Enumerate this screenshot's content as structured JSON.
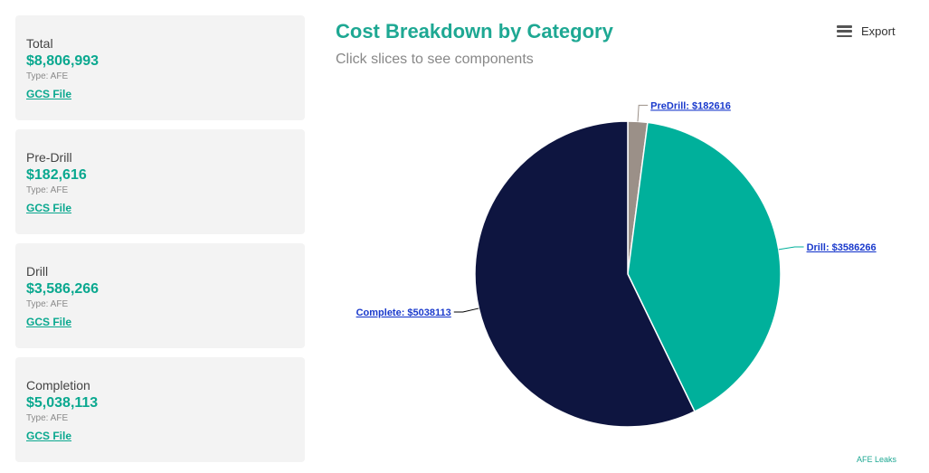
{
  "cards": [
    {
      "label": "Total",
      "value": "$8,806,993",
      "type": "Type: AFE",
      "link": "GCS File"
    },
    {
      "label": "Pre-Drill",
      "value": "$182,616",
      "type": "Type: AFE",
      "link": "GCS File"
    },
    {
      "label": "Drill",
      "value": "$3,586,266",
      "type": "Type: AFE",
      "link": "GCS File"
    },
    {
      "label": "Completion",
      "value": "$5,038,113",
      "type": "Type: AFE",
      "link": "GCS File"
    }
  ],
  "header": {
    "title": "Cost Breakdown by Category",
    "subtitle": "Click slices to see components",
    "export_label": "Export"
  },
  "footer": {
    "credit": "AFE Leaks"
  },
  "chart_data": {
    "type": "pie",
    "title": "Cost Breakdown by Category",
    "subtitle": "Click slices to see components",
    "slices": [
      {
        "name": "PreDrill",
        "value": 182616,
        "label": "PreDrill: $182616",
        "color": "#9b9088"
      },
      {
        "name": "Drill",
        "value": 3586266,
        "label": "Drill: $3586266",
        "color": "#00b09b"
      },
      {
        "name": "Complete",
        "value": 5038113,
        "label": "Complete: $5038113",
        "color": "#0e1540"
      }
    ]
  }
}
